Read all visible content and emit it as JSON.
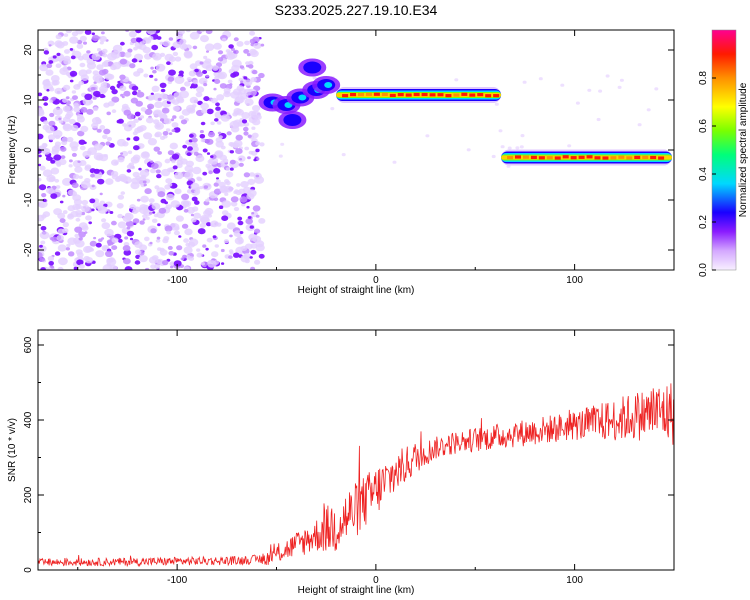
{
  "title": "S233.2025.227.19.10.E34",
  "chart_data": [
    {
      "type": "heatmap",
      "xlabel": "Height of straight line (km)",
      "ylabel": "Frequency (Hz)",
      "xlim": [
        -170,
        150
      ],
      "ylim": [
        -24,
        24
      ],
      "x_ticks": [
        "-100",
        "0",
        "100"
      ],
      "x_tick_values": [
        -100,
        0,
        100
      ],
      "y_ticks": [
        "20",
        "10",
        "0",
        "-10",
        "-20"
      ],
      "y_tick_values": [
        20,
        10,
        0,
        -10,
        -20
      ],
      "colorbar": {
        "label": "Normalized spectral amplitude",
        "range": [
          0,
          1
        ],
        "ticks": [
          "0.0",
          "0.2",
          "0.4",
          "0.6",
          "0.8"
        ],
        "tick_values": [
          0,
          0.2,
          0.4,
          0.6,
          0.8
        ],
        "colors": [
          "#f8f0ff",
          "#d4a8ff",
          "#8a1cff",
          "#1a00ff",
          "#00d8ff",
          "#00ff7a",
          "#7aff00",
          "#ffff00",
          "#ff9000",
          "#ff1a00",
          "#ff0090"
        ]
      },
      "noise_region_x": [
        -170,
        -57
      ],
      "tracks": [
        {
          "x_start": -20,
          "x_end": 63,
          "freq": 11,
          "peak_amplitude": 0.95
        },
        {
          "x_start": 63,
          "x_end": 149,
          "freq": -1.5,
          "peak_amplitude": 0.95
        }
      ],
      "transition_blobs": [
        {
          "x": -52,
          "freq": 9.5,
          "amplitude": 0.35
        },
        {
          "x": -45,
          "freq": 9,
          "amplitude": 0.3
        },
        {
          "x": -38,
          "freq": 10.5,
          "amplitude": 0.4
        },
        {
          "x": -30,
          "freq": 12,
          "amplitude": 0.45
        },
        {
          "x": -25,
          "freq": 13,
          "amplitude": 0.3
        },
        {
          "x": -32,
          "freq": 16.5,
          "amplitude": 0.15
        },
        {
          "x": -42,
          "freq": 6,
          "amplitude": 0.2
        }
      ]
    },
    {
      "type": "line",
      "xlabel": "Height of straight line (km)",
      "ylabel": "SNR (10 * v/v)",
      "xlim": [
        -170,
        150
      ],
      "ylim": [
        0,
        640
      ],
      "x_ticks": [
        "-100",
        "0",
        "100"
      ],
      "x_tick_values": [
        -100,
        0,
        100
      ],
      "y_ticks": [
        "0",
        "200",
        "400",
        "600"
      ],
      "y_tick_values": [
        0,
        200,
        400,
        600
      ],
      "series": [
        {
          "color": "#ee2222",
          "trend_x": [
            -170,
            -120,
            -70,
            -55,
            -45,
            -35,
            -20,
            -10,
            0,
            10,
            20,
            30,
            40,
            60,
            80,
            100,
            120,
            140,
            150
          ],
          "trend_y": [
            20,
            22,
            25,
            30,
            55,
            80,
            120,
            160,
            210,
            260,
            300,
            325,
            340,
            355,
            370,
            385,
            400,
            420,
            420
          ],
          "noise_x": [
            -170,
            -60,
            -45,
            -30,
            -20,
            0,
            30,
            100,
            135,
            150
          ],
          "noise_amp": [
            10,
            12,
            30,
            45,
            80,
            70,
            30,
            40,
            70,
            90
          ]
        }
      ]
    }
  ]
}
